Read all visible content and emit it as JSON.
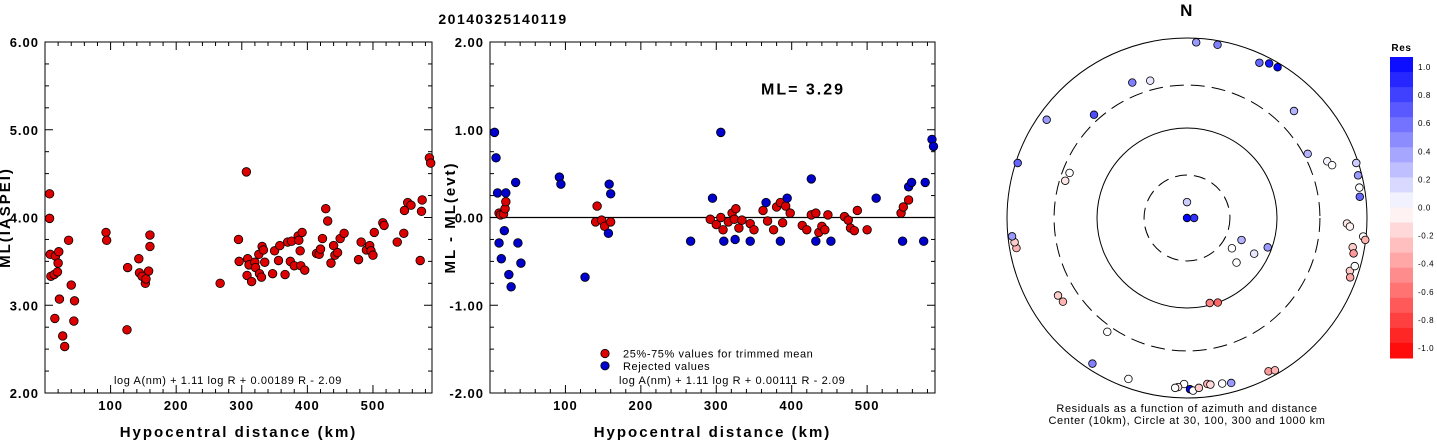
{
  "title": "20140325140119",
  "chart_data": [
    {
      "id": "left",
      "type": "scatter",
      "ylabel": "ML(IASPEI)",
      "xlabel": "Hypocentral distance (km)",
      "xlim": [
        0,
        590
      ],
      "ylim": [
        2.0,
        6.0
      ],
      "xticks": [
        100,
        200,
        300,
        400,
        500
      ],
      "yticks": [
        "2.00",
        "3.00",
        "4.00",
        "5.00",
        "6.00"
      ],
      "formula": "log A(nm) + 1.11 log R + 0.00189 R - 2.09",
      "series": [
        {
          "color": "#dd0000",
          "points": [
            [
              7,
              4.27
            ],
            [
              7,
              3.99
            ],
            [
              8,
              3.58
            ],
            [
              9,
              3.33
            ],
            [
              14,
              3.35
            ],
            [
              15,
              2.85
            ],
            [
              16,
              3.56
            ],
            [
              19,
              3.38
            ],
            [
              20,
              3.48
            ],
            [
              21,
              3.61
            ],
            [
              22,
              3.07
            ],
            [
              27,
              2.65
            ],
            [
              30,
              2.53
            ],
            [
              36,
              3.74
            ],
            [
              40,
              3.23
            ],
            [
              44,
              2.82
            ],
            [
              45,
              3.05
            ],
            [
              93,
              3.83
            ],
            [
              94,
              3.74
            ],
            [
              125,
              2.72
            ],
            [
              126,
              3.43
            ],
            [
              143,
              3.53
            ],
            [
              144,
              3.37
            ],
            [
              148,
              3.33
            ],
            [
              153,
              3.25
            ],
            [
              154,
              3.3
            ],
            [
              158,
              3.39
            ],
            [
              160,
              3.8
            ],
            [
              160,
              3.67
            ],
            [
              267,
              3.25
            ],
            [
              295,
              3.75
            ],
            [
              296,
              3.5
            ],
            [
              307,
              4.52
            ],
            [
              308,
              3.34
            ],
            [
              309,
              3.53
            ],
            [
              311,
              3.46
            ],
            [
              315,
              3.27
            ],
            [
              320,
              3.49
            ],
            [
              321,
              3.43
            ],
            [
              326,
              3.58
            ],
            [
              327,
              3.36
            ],
            [
              330,
              3.32
            ],
            [
              331,
              3.67
            ],
            [
              333,
              3.63
            ],
            [
              335,
              3.49
            ],
            [
              347,
              3.36
            ],
            [
              350,
              3.62
            ],
            [
              356,
              3.51
            ],
            [
              358,
              3.68
            ],
            [
              366,
              3.35
            ],
            [
              370,
              3.72
            ],
            [
              374,
              3.5
            ],
            [
              376,
              3.73
            ],
            [
              380,
              3.45
            ],
            [
              386,
              3.79
            ],
            [
              387,
              3.74
            ],
            [
              389,
              3.62
            ],
            [
              390,
              3.45
            ],
            [
              392,
              3.83
            ],
            [
              396,
              3.4
            ],
            [
              414,
              3.59
            ],
            [
              418,
              3.58
            ],
            [
              420,
              3.64
            ],
            [
              423,
              3.76
            ],
            [
              428,
              4.1
            ],
            [
              431,
              3.96
            ],
            [
              436,
              3.48
            ],
            [
              440,
              3.68
            ],
            [
              442,
              3.57
            ],
            [
              446,
              3.6
            ],
            [
              450,
              3.76
            ],
            [
              456,
              3.82
            ],
            [
              478,
              3.52
            ],
            [
              482,
              3.72
            ],
            [
              490,
              3.63
            ],
            [
              495,
              3.68
            ],
            [
              497,
              3.62
            ],
            [
              500,
              3.57
            ],
            [
              502,
              3.83
            ],
            [
              515,
              3.94
            ],
            [
              517,
              3.91
            ],
            [
              537,
              3.72
            ],
            [
              547,
              3.82
            ],
            [
              548,
              4.08
            ],
            [
              553,
              4.17
            ],
            [
              558,
              4.14
            ],
            [
              572,
              3.51
            ],
            [
              574,
              4.07
            ],
            [
              575,
              4.2
            ],
            [
              586,
              4.68
            ],
            [
              588,
              4.62
            ]
          ]
        }
      ]
    },
    {
      "id": "middle",
      "type": "scatter",
      "ylabel": "ML - ML(evt)",
      "xlabel": "Hypocentral distance (km)",
      "xlim": [
        0,
        590
      ],
      "ylim": [
        -2.0,
        2.0
      ],
      "xticks": [
        100,
        200,
        300,
        400,
        500
      ],
      "yticks": [
        "-2.00",
        "-1.00",
        "0.00",
        "1.00",
        "2.00"
      ],
      "annotation": "ML= 3.29",
      "legend": [
        "25%-75% values for trimmed mean",
        "Rejected values"
      ],
      "formula": "log A(nm) + 1.11 log R + 0.00111 R - 2.09",
      "series": [
        {
          "name": "25%-75% values for trimmed mean",
          "color": "#dd0000",
          "points": [
            [
              12,
              0.05
            ],
            [
              14,
              0.03
            ],
            [
              18,
              0.04
            ],
            [
              20,
              0.1
            ],
            [
              21,
              0.18
            ],
            [
              140,
              -0.05
            ],
            [
              142,
              0.13
            ],
            [
              148,
              -0.03
            ],
            [
              152,
              -0.1
            ],
            [
              160,
              -0.05
            ],
            [
              292,
              -0.02
            ],
            [
              300,
              -0.08
            ],
            [
              306,
              0.0
            ],
            [
              309,
              -0.14
            ],
            [
              316,
              -0.05
            ],
            [
              321,
              0.05
            ],
            [
              324,
              -0.02
            ],
            [
              326,
              0.1
            ],
            [
              330,
              -0.12
            ],
            [
              334,
              -0.03
            ],
            [
              345,
              -0.07
            ],
            [
              350,
              -0.14
            ],
            [
              362,
              0.08
            ],
            [
              368,
              -0.04
            ],
            [
              376,
              -0.14
            ],
            [
              380,
              0.12
            ],
            [
              385,
              0.17
            ],
            [
              388,
              -0.06
            ],
            [
              392,
              0.13
            ],
            [
              398,
              0.05
            ],
            [
              414,
              -0.09
            ],
            [
              420,
              -0.14
            ],
            [
              426,
              0.03
            ],
            [
              432,
              0.05
            ],
            [
              436,
              -0.17
            ],
            [
              440,
              -0.1
            ],
            [
              444,
              -0.14
            ],
            [
              448,
              0.03
            ],
            [
              470,
              0.01
            ],
            [
              475,
              -0.03
            ],
            [
              478,
              -0.12
            ],
            [
              483,
              -0.15
            ],
            [
              487,
              0.08
            ],
            [
              500,
              -0.14
            ],
            [
              545,
              0.05
            ],
            [
              548,
              0.12
            ],
            [
              555,
              0.2
            ]
          ]
        },
        {
          "name": "Rejected values",
          "color": "#0000cc",
          "points": [
            [
              6,
              0.97
            ],
            [
              8,
              0.68
            ],
            [
              10,
              0.28
            ],
            [
              12,
              -0.29
            ],
            [
              15,
              -0.47
            ],
            [
              19,
              -0.15
            ],
            [
              21,
              0.28
            ],
            [
              25,
              -0.65
            ],
            [
              28,
              -0.79
            ],
            [
              34,
              0.4
            ],
            [
              37,
              -0.29
            ],
            [
              41,
              -0.52
            ],
            [
              92,
              0.46
            ],
            [
              94,
              0.38
            ],
            [
              126,
              -0.68
            ],
            [
              157,
              -0.18
            ],
            [
              158,
              0.38
            ],
            [
              160,
              0.27
            ],
            [
              266,
              -0.27
            ],
            [
              295,
              0.22
            ],
            [
              306,
              0.97
            ],
            [
              310,
              -0.27
            ],
            [
              325,
              -0.25
            ],
            [
              345,
              -0.27
            ],
            [
              366,
              0.17
            ],
            [
              385,
              -0.27
            ],
            [
              394,
              0.22
            ],
            [
              426,
              0.44
            ],
            [
              432,
              -0.27
            ],
            [
              452,
              -0.27
            ],
            [
              512,
              0.22
            ],
            [
              547,
              -0.27
            ],
            [
              555,
              0.35
            ],
            [
              559,
              0.4
            ],
            [
              575,
              -0.27
            ],
            [
              577,
              0.4
            ],
            [
              586,
              0.89
            ],
            [
              588,
              0.81
            ]
          ]
        }
      ]
    },
    {
      "id": "polar",
      "type": "polar-scatter",
      "north_label": "N",
      "caption1": "Residuals as a function of azimuth and distance",
      "caption2": "Center (10km), Circle at 30, 100, 300 and 1000 km",
      "colorbar": {
        "title": "Res",
        "labels": [
          "1.0",
          "0.8",
          "0.6",
          "0.4",
          "0.2",
          "0.0",
          "-0.2",
          "-0.4",
          "-0.6",
          "-0.8",
          "-1.0"
        ]
      },
      "points": [
        {
          "az": 0,
          "dist": 15,
          "res": 0.2
        },
        {
          "az": 90,
          "dist": 12,
          "res": 0.8
        },
        {
          "az": 200,
          "dist": 10,
          "res": 1.0
        },
        {
          "az": 10,
          "dist": 900,
          "res": 0.5
        },
        {
          "az": 3,
          "dist": 900,
          "res": 0.4
        },
        {
          "az": 25,
          "dist": 800,
          "res": 0.6
        },
        {
          "az": 28,
          "dist": 880,
          "res": 0.9
        },
        {
          "az": 31,
          "dist": 900,
          "res": 1.0
        },
        {
          "az": 45,
          "dist": 480,
          "res": 0.3
        },
        {
          "az": 338,
          "dist": 420,
          "res": 0.5
        },
        {
          "az": 345,
          "dist": 380,
          "res": 0.1
        },
        {
          "az": 305,
          "dist": 800,
          "res": 0.4
        },
        {
          "az": 318,
          "dist": 350,
          "res": 0.7
        },
        {
          "az": 62,
          "dist": 330,
          "res": 0.3
        },
        {
          "az": 68,
          "dist": 480,
          "res": 0.05
        },
        {
          "az": 70,
          "dist": 520,
          "res": 0.0
        },
        {
          "az": 72,
          "dist": 950,
          "res": 0.2
        },
        {
          "az": 76,
          "dist": 910,
          "res": 0.4
        },
        {
          "az": 80,
          "dist": 880,
          "res": 0.0
        },
        {
          "az": 83,
          "dist": 860,
          "res": 0.6
        },
        {
          "az": 92,
          "dist": 600,
          "res": -0.1
        },
        {
          "az": 93,
          "dist": 650,
          "res": -0.05
        },
        {
          "az": 96,
          "dist": 930,
          "res": 0.0
        },
        {
          "az": 97,
          "dist": 990,
          "res": -0.3
        },
        {
          "az": 100,
          "dist": 740,
          "res": -0.2
        },
        {
          "az": 102,
          "dist": 780,
          "res": -0.4
        },
        {
          "az": 108,
          "dist": 800,
          "res": -0.2
        },
        {
          "az": 110,
          "dist": 850,
          "res": -0.35
        },
        {
          "az": 106,
          "dist": 870,
          "res": 0.0
        },
        {
          "az": 110,
          "dist": 90,
          "res": 0.4
        },
        {
          "az": 118,
          "dist": 70,
          "res": 0.1
        },
        {
          "az": 124,
          "dist": 40,
          "res": 0.0
        },
        {
          "az": 112,
          "dist": 45,
          "res": 0.3
        },
        {
          "az": 132,
          "dist": 55,
          "res": 0.0
        },
        {
          "az": 160,
          "dist": 100,
          "res": -0.6
        },
        {
          "az": 165,
          "dist": 95,
          "res": -0.5
        },
        {
          "az": 181,
          "dist": 700,
          "res": 0.0
        },
        {
          "az": 183,
          "dist": 760,
          "res": -0.1
        },
        {
          "az": 184,
          "dist": 780,
          "res": 0.0
        },
        {
          "az": 179,
          "dist": 800,
          "res": 1.0
        },
        {
          "az": 178,
          "dist": 830,
          "res": 0.0
        },
        {
          "az": 176,
          "dist": 780,
          "res": -0.2
        },
        {
          "az": 173,
          "dist": 720,
          "res": -0.3
        },
        {
          "az": 172,
          "dist": 740,
          "res": -0.15
        },
        {
          "az": 168,
          "dist": 760,
          "res": 0.0
        },
        {
          "az": 165,
          "dist": 790,
          "res": 0.4
        },
        {
          "az": 152,
          "dist": 850,
          "res": -0.4
        },
        {
          "az": 150,
          "dist": 900,
          "res": -0.3
        },
        {
          "az": 200,
          "dist": 800,
          "res": 0.0
        },
        {
          "az": 213,
          "dist": 850,
          "res": 0.5
        },
        {
          "az": 215,
          "dist": 350,
          "res": 0.0
        },
        {
          "az": 236,
          "dist": 460,
          "res": -0.3
        },
        {
          "az": 239,
          "dist": 470,
          "res": -0.2
        },
        {
          "az": 260,
          "dist": 840,
          "res": -0.3
        },
        {
          "az": 262,
          "dist": 860,
          "res": -0.2
        },
        {
          "az": 264,
          "dist": 900,
          "res": 0.4
        },
        {
          "az": 287,
          "dist": 260,
          "res": -0.1
        },
        {
          "az": 291,
          "dist": 250,
          "res": 0.0
        },
        {
          "az": 288,
          "dist": 950,
          "res": 0.6
        }
      ]
    }
  ]
}
